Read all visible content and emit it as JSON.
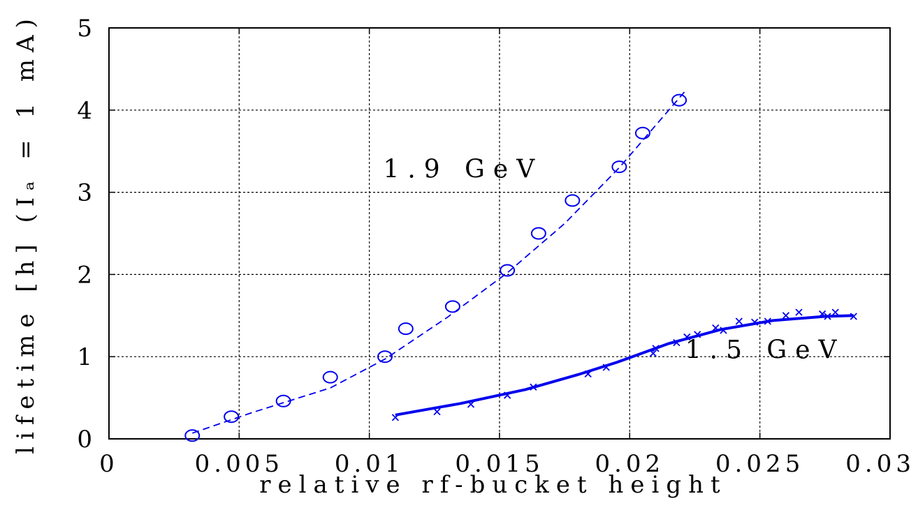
{
  "chart_data": {
    "type": "scatter",
    "xlabel": "relative rf-bucket height",
    "ylabel": "lifetime [h] (Iₐ = 1 mA)",
    "xlim": [
      0,
      0.03
    ],
    "ylim": [
      0,
      5
    ],
    "xticks": [
      0,
      0.005,
      0.01,
      0.015,
      0.02,
      0.025,
      0.03
    ],
    "xtick_labels": [
      "0",
      "0.005",
      "0.01",
      "0.015",
      "0.02",
      "0.025",
      "0.03"
    ],
    "yticks": [
      0,
      1,
      2,
      3,
      4,
      5
    ],
    "ytick_labels": [
      "0",
      "1",
      "2",
      "3",
      "4",
      "5"
    ],
    "grid": true,
    "color": "#0000ee",
    "annotations": [
      {
        "text": "1.9 GeV",
        "x": 0.0136,
        "y": 3.18
      },
      {
        "text": "1.5 GeV",
        "x": 0.0252,
        "y": 0.98
      }
    ],
    "series": [
      {
        "label": "1.9 GeV data",
        "marker": "circle",
        "x": [
          0.0032,
          0.0047,
          0.0067,
          0.0085,
          0.0106,
          0.0114,
          0.0132,
          0.0153,
          0.0165,
          0.0178,
          0.0196,
          0.0205,
          0.0219
        ],
        "y": [
          0.04,
          0.27,
          0.46,
          0.75,
          1.0,
          1.34,
          1.61,
          2.05,
          2.5,
          2.9,
          3.31,
          3.72,
          4.12
        ]
      },
      {
        "label": "1.9 GeV fit",
        "line": "dashed",
        "x": [
          0.0032,
          0.0055,
          0.0085,
          0.0106,
          0.013,
          0.0153,
          0.0175,
          0.0196,
          0.0221
        ],
        "y": [
          0.07,
          0.32,
          0.62,
          0.97,
          1.48,
          2.02,
          2.62,
          3.3,
          4.22
        ]
      },
      {
        "label": "1.5 GeV data",
        "marker": "x",
        "x": [
          0.011,
          0.0126,
          0.0139,
          0.0153,
          0.0163,
          0.0184,
          0.0191,
          0.0209,
          0.021,
          0.0218,
          0.0222,
          0.0226,
          0.0233,
          0.0236,
          0.0242,
          0.0248,
          0.0253,
          0.026,
          0.0265,
          0.0274,
          0.0276,
          0.0279,
          0.0286
        ],
        "y": [
          0.26,
          0.33,
          0.42,
          0.53,
          0.63,
          0.79,
          0.87,
          1.04,
          1.1,
          1.17,
          1.24,
          1.27,
          1.35,
          1.32,
          1.43,
          1.42,
          1.43,
          1.5,
          1.54,
          1.52,
          1.49,
          1.54,
          1.49
        ]
      },
      {
        "label": "1.5 GeV fit",
        "line": "solid",
        "x": [
          0.011,
          0.0135,
          0.016,
          0.018,
          0.0195,
          0.0215,
          0.0235,
          0.0255,
          0.0275,
          0.0286
        ],
        "y": [
          0.29,
          0.43,
          0.6,
          0.78,
          0.93,
          1.16,
          1.33,
          1.44,
          1.49,
          1.5
        ]
      }
    ]
  }
}
